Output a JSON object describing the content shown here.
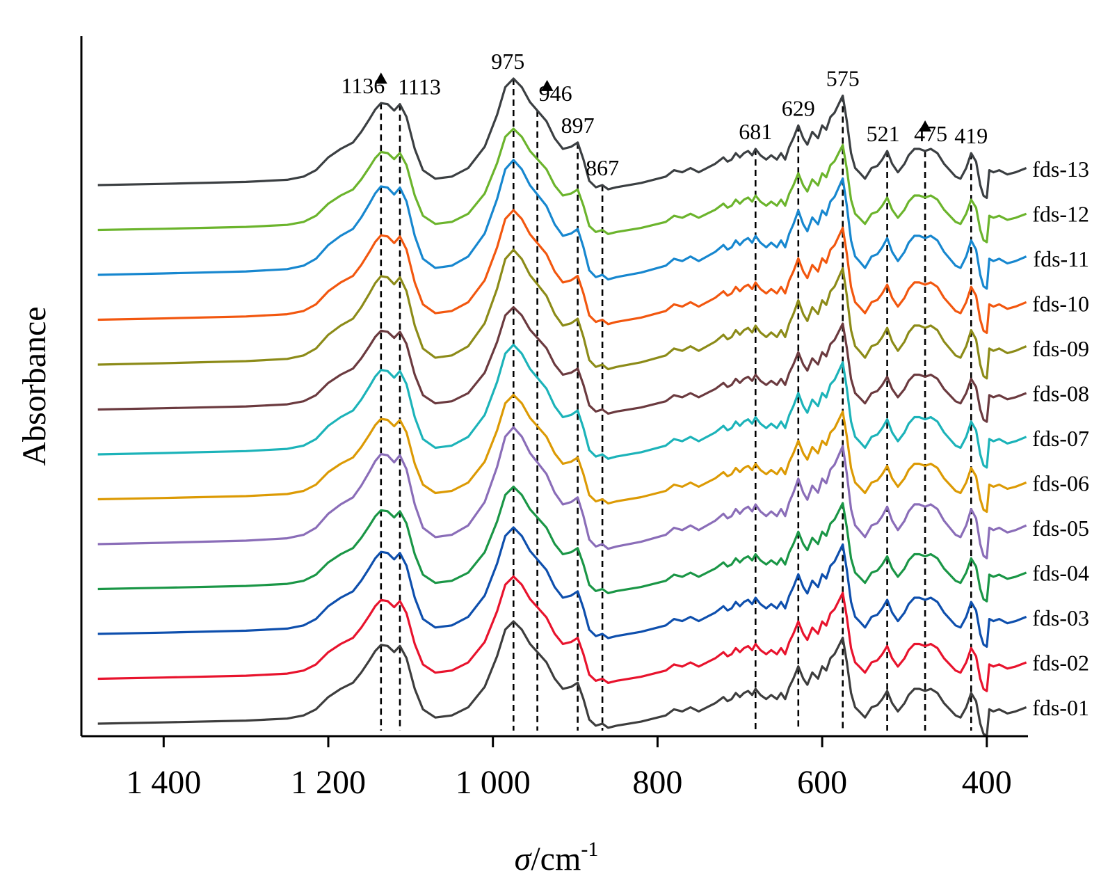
{
  "chart_data": {
    "type": "line",
    "title": "",
    "xlabel": {
      "symbol": "σ",
      "unit": "/cm",
      "exponent": "-1"
    },
    "ylabel": "Absorbance",
    "xlim": [
      1500,
      350
    ],
    "x_reversed": true,
    "x_ticks": [
      1400,
      1200,
      1000,
      800,
      600,
      400
    ],
    "x_tick_labels": [
      "1 400",
      "1 200",
      "1 000",
      "800",
      "600",
      "400"
    ],
    "y_ticks": false,
    "grid": false,
    "legend": "inline-right",
    "reference_lines": [
      1136,
      1113,
      975,
      946,
      897,
      867,
      681,
      629,
      575,
      521,
      475,
      419
    ],
    "peak_labels": [
      {
        "label": "1136",
        "position": 1136,
        "row": "fds-13",
        "arrow": true
      },
      {
        "label": "1113",
        "position": 1113,
        "row": "fds-13"
      },
      {
        "label": "975",
        "position": 975,
        "row": "fds-13"
      },
      {
        "label": "946",
        "position": 946,
        "row": "fds-13",
        "arrow": true
      },
      {
        "label": "897",
        "position": 897,
        "row": "fds-13"
      },
      {
        "label": "867",
        "position": 867,
        "row": "fds-13"
      },
      {
        "label": "681",
        "position": 681,
        "row": "fds-13"
      },
      {
        "label": "629",
        "position": 629,
        "row": "fds-13"
      },
      {
        "label": "575",
        "position": 575,
        "row": "fds-13"
      },
      {
        "label": "521",
        "position": 521,
        "row": "fds-13"
      },
      {
        "label": "475",
        "position": 475,
        "row": "fds-13",
        "arrow": true
      },
      {
        "label": "419",
        "position": 419,
        "row": "fds-13"
      }
    ],
    "profile": {
      "x": [
        1480,
        1400,
        1300,
        1250,
        1230,
        1215,
        1200,
        1185,
        1170,
        1160,
        1150,
        1143,
        1136,
        1128,
        1120,
        1113,
        1105,
        1095,
        1085,
        1070,
        1050,
        1030,
        1010,
        995,
        985,
        975,
        965,
        955,
        946,
        935,
        925,
        915,
        905,
        897,
        890,
        883,
        875,
        867,
        860,
        850,
        820,
        790,
        780,
        770,
        760,
        750,
        740,
        730,
        720,
        715,
        710,
        705,
        700,
        695,
        690,
        685,
        681,
        675,
        668,
        662,
        655,
        650,
        645,
        640,
        635,
        629,
        623,
        618,
        612,
        605,
        600,
        595,
        590,
        585,
        580,
        575,
        570,
        565,
        560,
        555,
        548,
        540,
        533,
        527,
        521,
        515,
        508,
        500,
        495,
        488,
        482,
        475,
        468,
        460,
        452,
        445,
        438,
        432,
        425,
        419,
        413,
        408,
        404,
        400,
        397,
        392,
        385,
        375,
        365,
        352
      ],
      "y": [
        0.0,
        0.006,
        0.015,
        0.025,
        0.04,
        0.07,
        0.13,
        0.17,
        0.2,
        0.25,
        0.31,
        0.355,
        0.385,
        0.38,
        0.35,
        0.38,
        0.32,
        0.17,
        0.07,
        0.03,
        0.04,
        0.08,
        0.18,
        0.33,
        0.46,
        0.5,
        0.46,
        0.39,
        0.35,
        0.3,
        0.22,
        0.17,
        0.18,
        0.2,
        0.12,
        0.02,
        -0.01,
        0.0,
        -0.02,
        -0.01,
        0.01,
        0.04,
        0.07,
        0.06,
        0.08,
        0.06,
        0.08,
        0.1,
        0.13,
        0.11,
        0.12,
        0.15,
        0.13,
        0.15,
        0.16,
        0.14,
        0.17,
        0.14,
        0.12,
        0.14,
        0.12,
        0.15,
        0.12,
        0.18,
        0.22,
        0.28,
        0.22,
        0.19,
        0.25,
        0.22,
        0.28,
        0.26,
        0.32,
        0.34,
        0.38,
        0.42,
        0.3,
        0.15,
        0.08,
        0.06,
        0.03,
        0.08,
        0.09,
        0.12,
        0.16,
        0.1,
        0.06,
        0.1,
        0.14,
        0.17,
        0.17,
        0.16,
        0.17,
        0.15,
        0.1,
        0.07,
        0.04,
        0.03,
        0.08,
        0.15,
        0.11,
        0.0,
        -0.05,
        -0.06,
        0.07,
        0.06,
        0.07,
        0.05,
        0.06,
        0.08
      ]
    },
    "series": [
      {
        "name": "fds-01",
        "color": "#3d3d3d",
        "baseline": 0,
        "scale": 0.98
      },
      {
        "name": "fds-02",
        "color": "#e8132d",
        "baseline": 1,
        "scale": 0.98
      },
      {
        "name": "fds-03",
        "color": "#0e4fad",
        "baseline": 2,
        "scale": 1.02
      },
      {
        "name": "fds-04",
        "color": "#1a9646",
        "baseline": 3,
        "scale": 0.98
      },
      {
        "name": "fds-05",
        "color": "#8a6db8",
        "baseline": 4,
        "scale": 1.12
      },
      {
        "name": "fds-06",
        "color": "#dc9a04",
        "baseline": 5,
        "scale": 1.0
      },
      {
        "name": "fds-07",
        "color": "#1cb3b9",
        "baseline": 6,
        "scale": 1.05
      },
      {
        "name": "fds-08",
        "color": "#6b3a3f",
        "baseline": 7,
        "scale": 0.98
      },
      {
        "name": "fds-09",
        "color": "#8c8b18",
        "baseline": 8,
        "scale": 1.1
      },
      {
        "name": "fds-10",
        "color": "#f2570f",
        "baseline": 9,
        "scale": 1.05
      },
      {
        "name": "fds-11",
        "color": "#1787cf",
        "baseline": 10,
        "scale": 1.1
      },
      {
        "name": "fds-12",
        "color": "#6bb42c",
        "baseline": 11,
        "scale": 0.97
      },
      {
        "name": "fds-13",
        "color": "#3b3f42",
        "baseline": 12,
        "scale": 1.02
      }
    ]
  }
}
